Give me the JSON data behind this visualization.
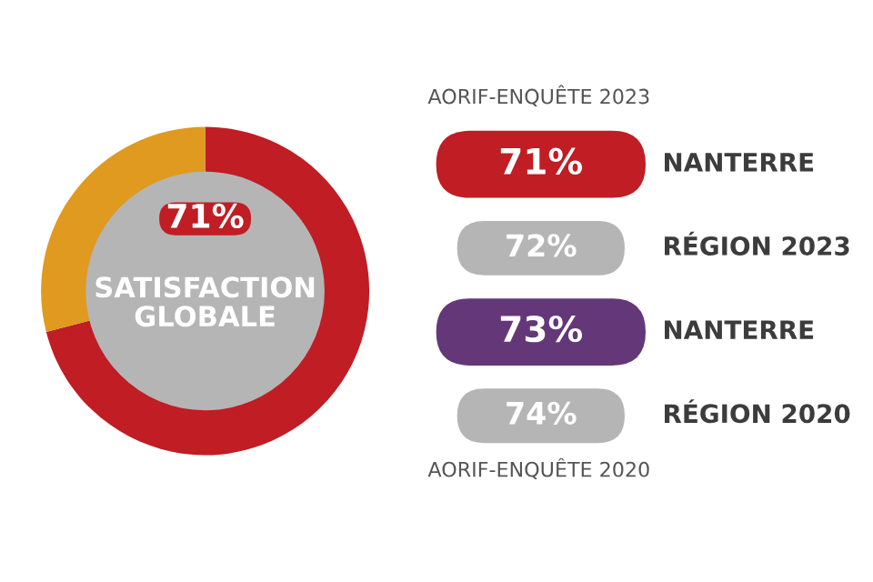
{
  "chart_data": [
    {
      "type": "donut",
      "categories": [
        null,
        null
      ],
      "values": [
        71,
        29
      ],
      "colors": [
        "#c01d24",
        "#df9a1f"
      ],
      "value_labels": [
        "71%",
        null
      ],
      "annotations": [
        "SATISFACTION\nGLOBALE"
      ]
    },
    {
      "type": "other",
      "categories": [
        "NANTERRE",
        "RÉGION 2023",
        "NANTERRE",
        "RÉGION 2020"
      ],
      "values": [
        71,
        72,
        73,
        74
      ],
      "value_labels": [
        "71%",
        "72%",
        "73%",
        "74%"
      ],
      "colors": [
        "#c01d24",
        "#b5b5b5",
        "#643779",
        "#b5b5b5"
      ],
      "annotations": [
        "AORIF-ENQUÊTE 2023",
        "AORIF-ENQUÊTE 2020"
      ]
    }
  ]
}
